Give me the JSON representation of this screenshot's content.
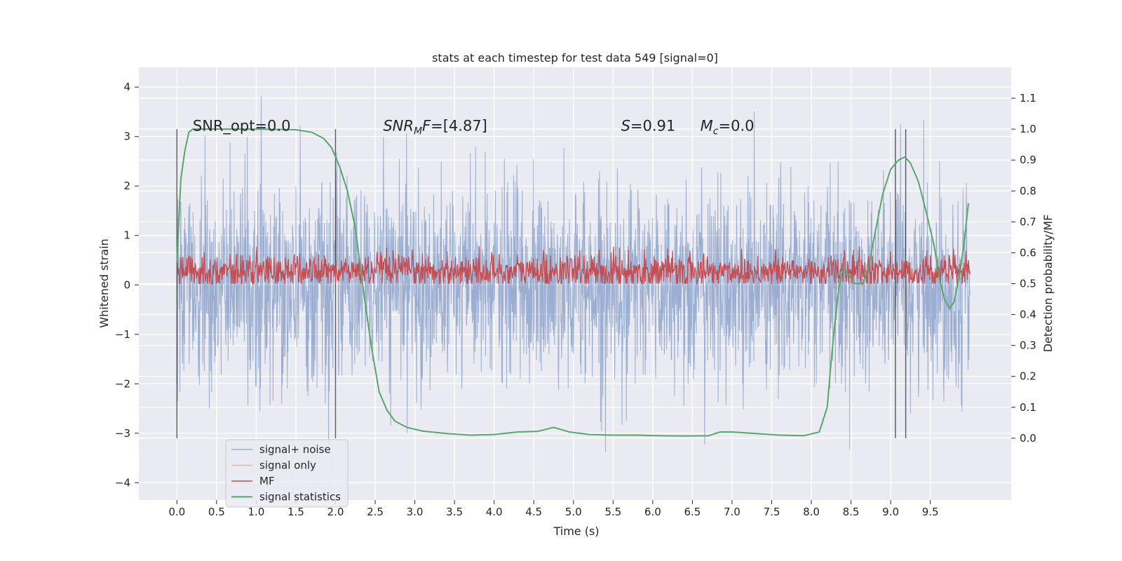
{
  "chart_data": {
    "type": "line",
    "title": "stats at each timestep for test data 549 [signal=0]",
    "xlabel": "Time (s)",
    "ylabel": "Whitened strain",
    "y2label": "Detection probability/MF",
    "xlim": [
      -0.48,
      10.52
    ],
    "ylim": [
      -4.35,
      4.4
    ],
    "y2lim": [
      -0.2,
      1.2
    ],
    "xticks": [
      0.0,
      0.5,
      1.0,
      1.5,
      2.0,
      2.5,
      3.0,
      3.5,
      4.0,
      4.5,
      5.0,
      5.5,
      6.0,
      6.5,
      7.0,
      7.5,
      8.0,
      8.5,
      9.0,
      9.5
    ],
    "xtick_labels": [
      "0.0",
      "0.5",
      "1.0",
      "1.5",
      "2.0",
      "2.5",
      "3.0",
      "3.5",
      "4.0",
      "4.5",
      "5.0",
      "5.5",
      "6.0",
      "6.5",
      "7.0",
      "7.5",
      "8.0",
      "8.5",
      "9.0",
      "9.5"
    ],
    "yticks": [
      -4,
      -3,
      -2,
      -1,
      0,
      1,
      2,
      3,
      4
    ],
    "ytick_labels": [
      "−4",
      "−3",
      "−2",
      "−1",
      "0",
      "1",
      "2",
      "3",
      "4"
    ],
    "y2ticks": [
      0.0,
      0.1,
      0.2,
      0.3,
      0.4,
      0.5,
      0.6,
      0.7,
      0.8,
      0.9,
      1.0,
      1.1
    ],
    "y2tick_labels": [
      "0.0",
      "0.1",
      "0.2",
      "0.3",
      "0.4",
      "0.5",
      "0.6",
      "0.7",
      "0.8",
      "0.9",
      "1.0",
      "1.1"
    ],
    "grid": true,
    "legend_position": "lower-left",
    "annotations": [
      {
        "text": "SNR_opt=0.0",
        "x": 0.2,
        "y2": 0.995
      },
      {
        "text": "SNR",
        "sub": "M",
        "rest": "F=[4.87]",
        "italic": true,
        "x": 2.6,
        "y2": 0.995
      },
      {
        "text": "S",
        "rest": "=0.91",
        "italic": true,
        "x": 5.6,
        "y2": 0.995
      },
      {
        "text": "M",
        "sub": "c",
        "rest": "=0.0",
        "italic": true,
        "x": 6.6,
        "y2": 0.995
      }
    ],
    "vlines": [
      {
        "x": 0.0,
        "y2_from": 0.0,
        "y2_to": 1.0
      },
      {
        "x": 2.0,
        "y2_from": 0.0,
        "y2_to": 1.0
      },
      {
        "x": 9.06,
        "y2_from": 0.0,
        "y2_to": 1.0
      },
      {
        "x": 9.19,
        "y2_from": 0.0,
        "y2_to": 1.0
      }
    ],
    "series": [
      {
        "name": "signal+ noise",
        "axis": "left",
        "color": "#4c72b0",
        "opacity": 0.5,
        "kind": "noise",
        "x_range": [
          0.0,
          10.0
        ],
        "sigma": 1.0,
        "extreme_min": -3.8,
        "extreme_max": 4.05
      },
      {
        "name": "signal only",
        "axis": "left",
        "color": "#dd8452",
        "opacity": 0.5,
        "kind": "flat",
        "values": []
      },
      {
        "name": "MF",
        "axis": "right",
        "color": "#c44e52",
        "kind": "band",
        "x_range": [
          0.0,
          10.0
        ],
        "center": 0.54,
        "min": 0.5,
        "max": 0.62
      },
      {
        "name": "signal statistics",
        "axis": "right",
        "color": "#55a868",
        "kind": "line",
        "x": [
          0.0,
          0.05,
          0.1,
          0.15,
          0.2,
          0.3,
          0.5,
          1.0,
          1.5,
          1.7,
          1.85,
          1.95,
          2.05,
          2.15,
          2.25,
          2.35,
          2.45,
          2.55,
          2.65,
          2.75,
          2.9,
          3.1,
          3.4,
          3.7,
          4.0,
          4.3,
          4.55,
          4.75,
          4.95,
          5.2,
          5.5,
          5.8,
          6.1,
          6.4,
          6.7,
          6.85,
          7.0,
          7.3,
          7.6,
          7.9,
          8.1,
          8.2,
          8.25,
          8.3,
          8.35,
          8.4,
          8.47,
          8.55,
          8.65,
          8.72,
          8.8,
          8.9,
          9.0,
          9.1,
          9.18,
          9.25,
          9.35,
          9.45,
          9.55,
          9.62,
          9.68,
          9.74,
          9.8,
          9.87,
          9.93,
          9.98
        ],
        "values": [
          0.57,
          0.84,
          0.93,
          0.99,
          1.0,
          1.0,
          1.0,
          1.0,
          0.998,
          0.99,
          0.97,
          0.94,
          0.88,
          0.8,
          0.68,
          0.48,
          0.3,
          0.15,
          0.09,
          0.055,
          0.035,
          0.023,
          0.015,
          0.01,
          0.012,
          0.02,
          0.022,
          0.035,
          0.02,
          0.012,
          0.01,
          0.01,
          0.008,
          0.007,
          0.008,
          0.02,
          0.02,
          0.015,
          0.01,
          0.008,
          0.02,
          0.1,
          0.25,
          0.38,
          0.49,
          0.55,
          0.53,
          0.5,
          0.5,
          0.55,
          0.66,
          0.79,
          0.87,
          0.9,
          0.91,
          0.89,
          0.83,
          0.73,
          0.62,
          0.51,
          0.45,
          0.42,
          0.44,
          0.53,
          0.64,
          0.76
        ]
      }
    ]
  }
}
